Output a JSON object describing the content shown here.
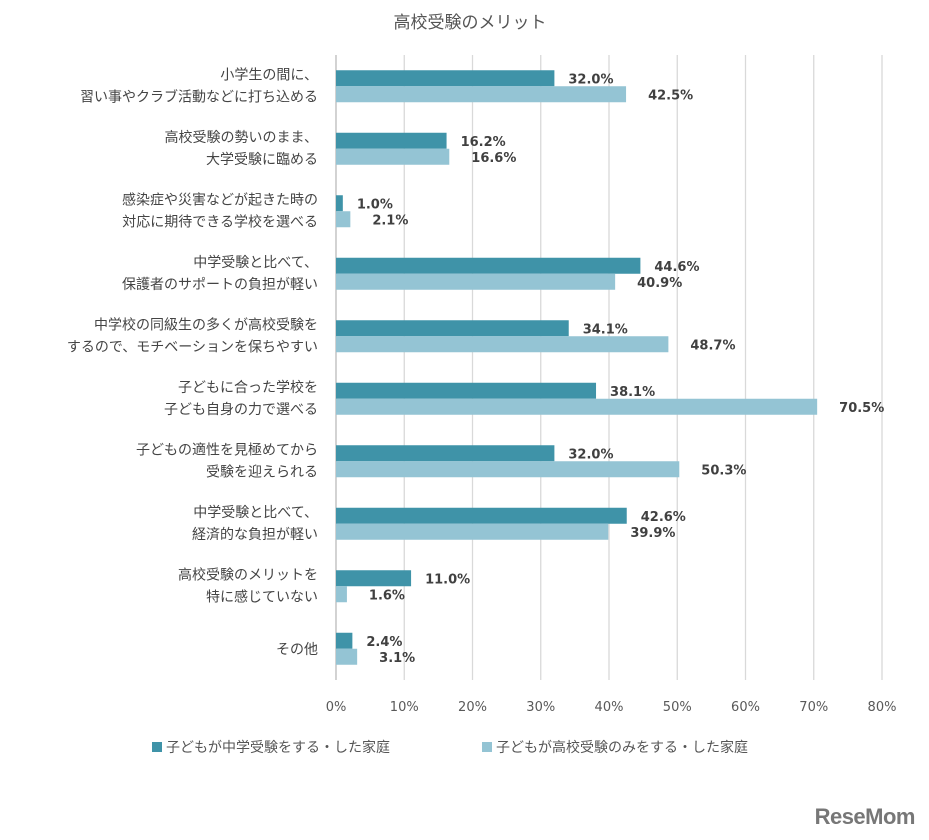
{
  "chart_data": {
    "type": "bar",
    "orientation": "horizontal",
    "title": "高校受験のメリット",
    "categories": [
      [
        "小学生の間に、",
        "習い事やクラブ活動などに打ち込める"
      ],
      [
        "高校受験の勢いのまま、",
        "大学受験に臨める"
      ],
      [
        "感染症や災害などが起きた時の",
        "対応に期待できる学校を選べる"
      ],
      [
        "中学受験と比べて、",
        "保護者のサポートの負担が軽い"
      ],
      [
        "中学校の同級生の多くが高校受験を",
        "するので、モチベーションを保ちやすい"
      ],
      [
        "子どもに合った学校を",
        "子ども自身の力で選べる"
      ],
      [
        "子どもの適性を見極めてから",
        "受験を迎えられる"
      ],
      [
        "中学受験と比べて、",
        "経済的な負担が軽い"
      ],
      [
        "高校受験のメリットを",
        "特に感じていない"
      ],
      [
        "その他"
      ]
    ],
    "series": [
      {
        "name": "子どもが中学受験をする・した家庭",
        "color": "#3f93a8",
        "values": [
          32.0,
          16.2,
          1.0,
          44.6,
          34.1,
          38.1,
          32.0,
          42.6,
          11.0,
          2.4
        ]
      },
      {
        "name": "子どもが高校受験のみをする・した家庭",
        "color": "#94c4d4",
        "values": [
          42.5,
          16.6,
          2.1,
          40.9,
          48.7,
          70.5,
          50.3,
          39.9,
          1.6,
          3.1
        ]
      }
    ],
    "xlim": [
      0,
      80
    ],
    "xticks": [
      "0%",
      "10%",
      "20%",
      "30%",
      "40%",
      "50%",
      "60%",
      "70%",
      "80%"
    ],
    "grid": true,
    "legend": "bottom"
  },
  "logo": "ReseMom"
}
